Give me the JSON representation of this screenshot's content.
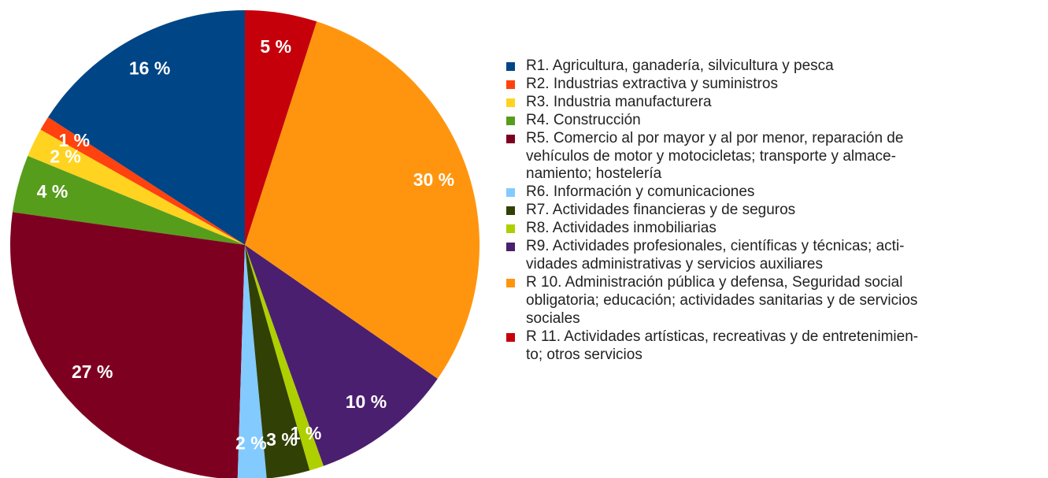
{
  "chart_data": {
    "type": "pie",
    "categories": [
      "R1. Agricultura, ganadería, silvicultura y pesca",
      "R2. Industrias extractiva y suministros",
      "R3. Industria manufacturera",
      "R4. Construcción",
      "R5. Comercio al por mayor y al por menor, reparación de\nvehículos de motor y motocicletas; transporte y almace-\nnamiento; hostelería",
      "R6. Información y comunicaciones",
      "R7. Actividades financieras y de seguros",
      "R8. Actividades inmobiliarias",
      "R9. Actividades profesionales, científicas y técnicas; acti-\nvidades administrativas y servicios auxiliares",
      "R 10. Administración pública y defensa, Seguridad social\nobligatoria; educación; actividades sanitarias y de servicios\nsociales",
      "R 11. Actividades artísticas, recreativas y de entretenimien-\nto; otros servicios"
    ],
    "values": [
      16,
      1,
      2,
      4,
      27,
      2,
      3,
      1,
      10,
      30,
      5
    ],
    "value_labels": [
      "16 %",
      "1 %",
      "2 %",
      "4 %",
      "27 %",
      "2 %",
      "3 %",
      "1 %",
      "10 %",
      "30 %",
      "5 %"
    ],
    "colors": [
      "#004586",
      "#ff420e",
      "#ffd320",
      "#579d1c",
      "#7e0021",
      "#83caff",
      "#314004",
      "#aecf00",
      "#4b1f6f",
      "#ff950e",
      "#c5000b"
    ],
    "legend": "right"
  }
}
